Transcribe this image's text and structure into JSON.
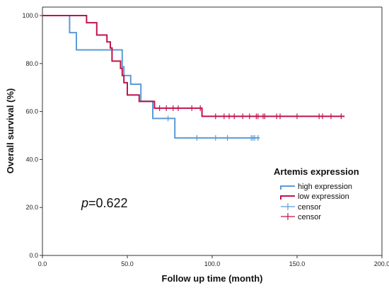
{
  "chart_data": {
    "type": "line",
    "subtype": "kaplan-meier",
    "xlabel": "Follow up time (month)",
    "ylabel": "Overall survival (%)",
    "xlim": [
      0,
      200
    ],
    "ylim": [
      0,
      100
    ],
    "x_ticks": [
      "0.0",
      "50.0",
      "100.0",
      "150.0",
      "200.0"
    ],
    "y_ticks": [
      "0.0",
      "20.0",
      "40.0",
      "60.0",
      "80.0",
      "100.0"
    ],
    "grid": false,
    "annotation": {
      "italic": "p",
      "text": "=0.622"
    },
    "legend": {
      "title": "Artemis expression",
      "placement": "right",
      "entries": [
        "high expression",
        "low expression",
        "censor",
        "censor"
      ]
    },
    "series": [
      {
        "name": "high expression",
        "color": "#5b9bd5",
        "steps": [
          [
            0,
            100
          ],
          [
            16,
            92.9
          ],
          [
            20,
            85.7
          ],
          [
            47,
            78.6
          ],
          [
            48,
            75
          ],
          [
            52,
            71.4
          ],
          [
            58,
            64.3
          ],
          [
            65,
            57.1
          ],
          [
            78,
            49
          ]
        ],
        "end_x": 128,
        "censor_x": [
          74,
          91,
          102,
          109,
          123,
          124,
          125,
          127
        ]
      },
      {
        "name": "low expression",
        "color": "#c0144b",
        "steps": [
          [
            0,
            100
          ],
          [
            26,
            97
          ],
          [
            32,
            91.9
          ],
          [
            38,
            89
          ],
          [
            40,
            86.5
          ],
          [
            41,
            81
          ],
          [
            46,
            78
          ],
          [
            47,
            75
          ],
          [
            48,
            72
          ],
          [
            50,
            66.9
          ],
          [
            57,
            64.2
          ],
          [
            66,
            61.4
          ],
          [
            94,
            58
          ]
        ],
        "end_x": 178,
        "censor_x": [
          69,
          73,
          77,
          80,
          88,
          93,
          102,
          107,
          110,
          113,
          118,
          122,
          126,
          127,
          130,
          131,
          138,
          140,
          150,
          163,
          165,
          170,
          176
        ]
      }
    ]
  }
}
